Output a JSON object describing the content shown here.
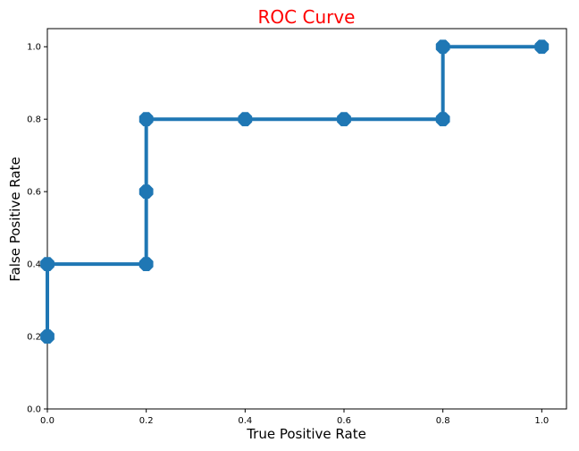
{
  "chart_data": {
    "type": "line",
    "title": "ROC Curve",
    "title_color": "#ff0000",
    "xlabel": "True Positive Rate",
    "ylabel": "False Positive Rate",
    "xlim": [
      0.0,
      1.05
    ],
    "ylim": [
      0.0,
      1.05
    ],
    "xticks": [
      "0.0",
      "0.2",
      "0.4",
      "0.6",
      "0.8",
      "1.0"
    ],
    "yticks": [
      "0.0",
      "0.2",
      "0.4",
      "0.6",
      "0.8",
      "1.0"
    ],
    "grid": false,
    "legend": "none",
    "series": [
      {
        "color": "#1f77b4",
        "marker": "octagon",
        "x": [
          0.0,
          0.0,
          0.2,
          0.2,
          0.2,
          0.4,
          0.6,
          0.8,
          0.8,
          1.0
        ],
        "y": [
          0.2,
          0.4,
          0.4,
          0.6,
          0.8,
          0.8,
          0.8,
          0.8,
          1.0,
          1.0
        ]
      }
    ]
  }
}
